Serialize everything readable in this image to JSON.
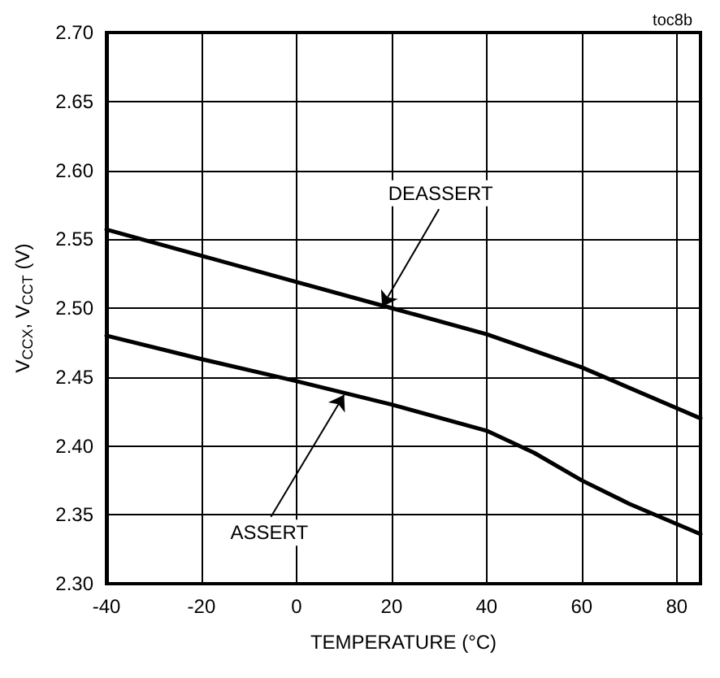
{
  "chart_data": {
    "type": "line",
    "xlabel": "TEMPERATURE (°C)",
    "ylabel": "V$_{CCX}$, V$_{CCT}$ (V)",
    "annotations": [
      "toc8b",
      {
        "text": "DEASSERT",
        "x": 18,
        "y": 2.501
      },
      {
        "text": "ASSERT",
        "x": 10,
        "y": 2.437
      }
    ],
    "series": [
      {
        "color": "#000000",
        "x": [
          -40,
          -20,
          0,
          20,
          40,
          60,
          85
        ],
        "values": [
          2.557,
          2.538,
          2.519,
          2.5,
          2.481,
          2.457,
          2.42
        ]
      },
      {
        "color": "#000000",
        "x": [
          -40,
          -20,
          0,
          20,
          40,
          50,
          60,
          70,
          85
        ],
        "values": [
          2.48,
          2.463,
          2.447,
          2.43,
          2.411,
          2.395,
          2.375,
          2.358,
          2.336
        ]
      }
    ],
    "xlim": [
      -40,
      85
    ],
    "xticks": [
      -40,
      -20,
      0,
      20,
      40,
      60,
      80
    ],
    "ylim": [
      2.3,
      2.7
    ],
    "yticks": [
      {
        "value": 2.3,
        "label": "2.30"
      },
      2.35,
      {
        "value": 2.4,
        "label": "2.40"
      },
      2.45,
      {
        "value": 2.5,
        "label": "2.50"
      },
      2.55,
      {
        "value": 2.6,
        "label": "2.60"
      },
      2.65,
      {
        "value": 2.7,
        "label": "2.70"
      }
    ],
    "grid": true,
    "marker": "none",
    "line_style": "solid"
  }
}
